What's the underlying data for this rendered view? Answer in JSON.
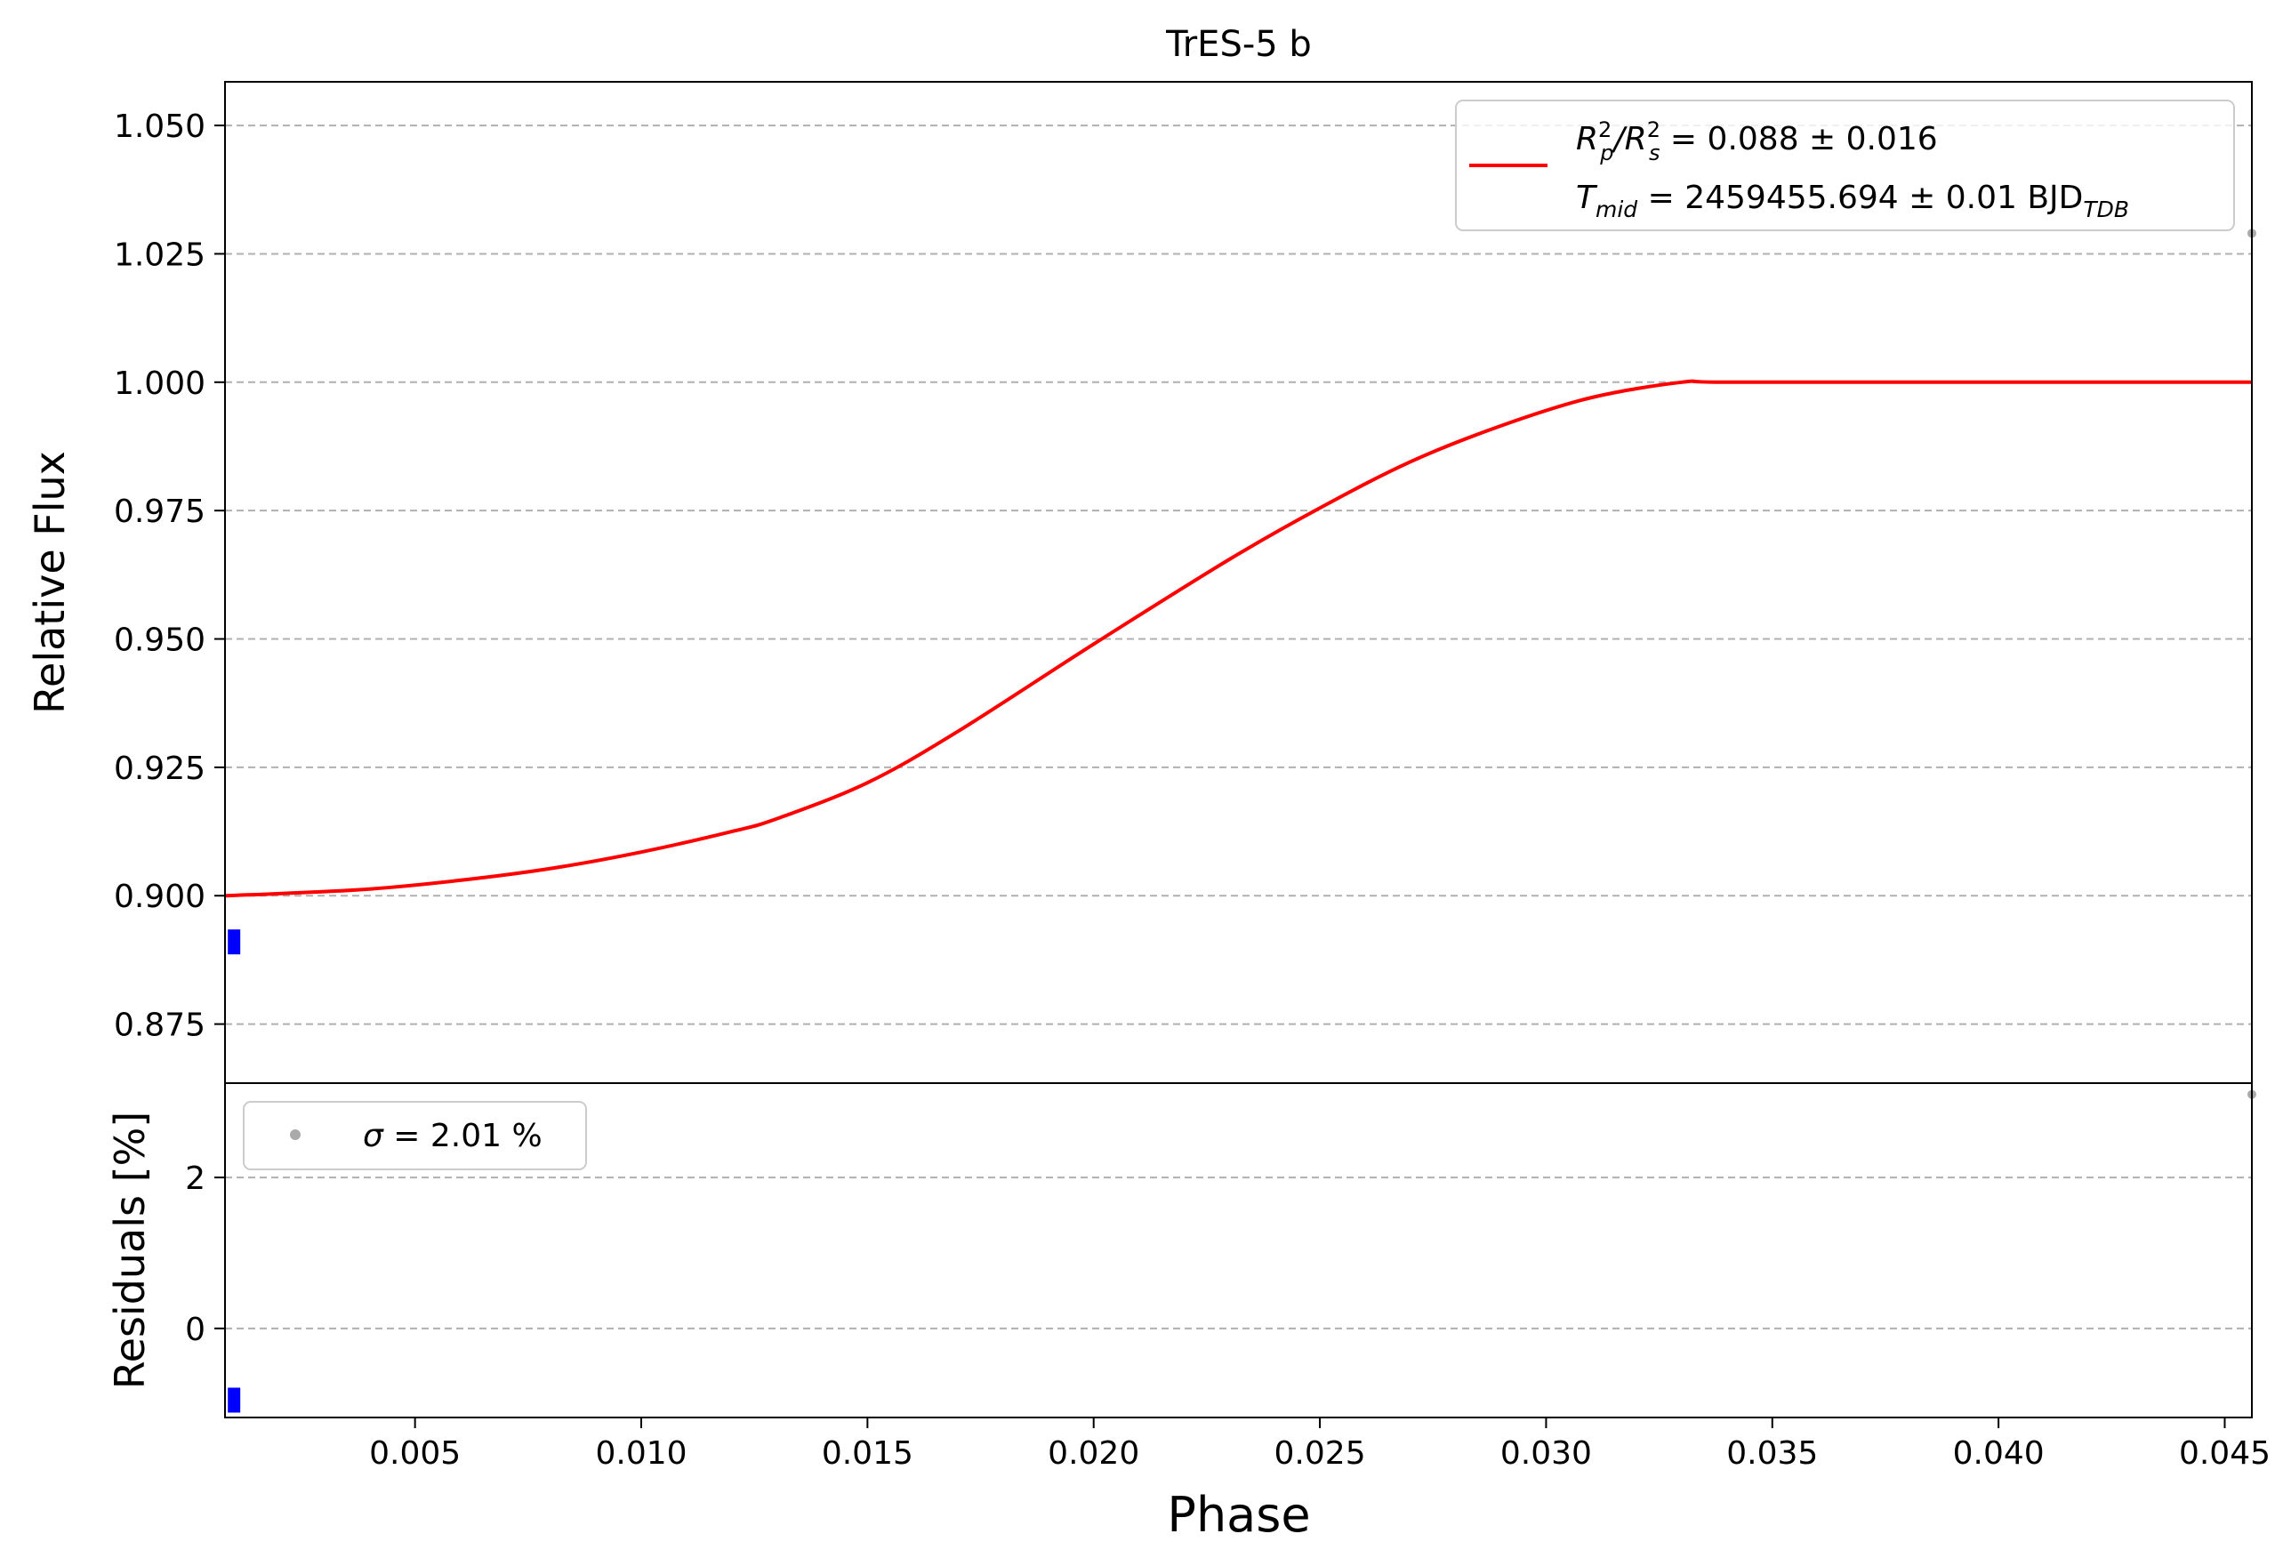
{
  "colors": {
    "fit": "#ff0000",
    "points": "#0000ff",
    "residual_legend": "#aaaaaa",
    "grid": "#b0b0b0"
  },
  "chart_data": [
    {
      "type": "line",
      "title": "TrES-5 b",
      "xlabel": "",
      "ylabel": "Relative Flux",
      "xlim": [
        0.0008,
        0.0456
      ],
      "ylim": [
        0.8635,
        1.0585
      ],
      "xticks": [
        0.005,
        0.01,
        0.015,
        0.02,
        0.025,
        0.03,
        0.035,
        0.04,
        0.045
      ],
      "yticks": [
        "0.875",
        "0.900",
        "0.925",
        "0.950",
        "0.975",
        "1.000",
        "1.025",
        "1.050"
      ],
      "grid": "y-dashed",
      "legend": {
        "placement": "top-right",
        "entries": [
          {
            "pre": "R",
            "sub1": "p",
            "sup1": "2",
            "slash": "/R",
            "sub2": "s",
            "sup2": "2",
            "post": " = 0.088 ± 0.016"
          },
          {
            "pre": "T",
            "sub1": "mid",
            "post": " = 2459455.694 ± 0.01 BJD",
            "sub2": "TDB"
          }
        ]
      },
      "series": [
        {
          "kind": "fit",
          "x": [
            0.0008,
            0.002,
            0.004,
            0.006,
            0.008,
            0.01,
            0.012,
            0.013,
            0.015,
            0.017,
            0.02,
            0.023,
            0.025,
            0.027,
            0.029,
            0.031,
            0.033,
            0.034,
            0.04,
            0.0456
          ],
          "y": [
            0.9,
            0.9004,
            0.9013,
            0.903,
            0.9053,
            0.9085,
            0.9125,
            0.915,
            0.922,
            0.932,
            0.949,
            0.9655,
            0.9755,
            0.9845,
            0.9915,
            0.997,
            1.0,
            1.0,
            1.0,
            1.0
          ]
        },
        {
          "kind": "data",
          "x": [
            0.001
          ],
          "y": [
            0.891
          ]
        },
        {
          "kind": "data-edge",
          "x": [
            0.0456
          ],
          "y": [
            1.029
          ]
        }
      ]
    },
    {
      "type": "scatter",
      "title": "",
      "xlabel": "Phase",
      "ylabel": "Residuals [%]",
      "xlim": [
        0.0008,
        0.0456
      ],
      "ylim": [
        -1.18,
        3.25
      ],
      "xticks": [
        0.005,
        0.01,
        0.015,
        0.02,
        0.025,
        0.03,
        0.035,
        0.04,
        0.045
      ],
      "xtick_labels": [
        "0.005",
        "0.010",
        "0.015",
        "0.020",
        "0.025",
        "0.030",
        "0.035",
        "0.040",
        "0.045"
      ],
      "yticks": [
        "0",
        "2"
      ],
      "grid": "y-dashed",
      "legend": {
        "placement": "top-left",
        "symbol": "σ",
        "text": " = 2.01 %"
      },
      "series": [
        {
          "kind": "residual",
          "x": [
            0.001
          ],
          "y": [
            -0.95
          ]
        },
        {
          "kind": "residual-edge",
          "x": [
            0.0456
          ],
          "y": [
            3.1
          ]
        }
      ]
    }
  ]
}
